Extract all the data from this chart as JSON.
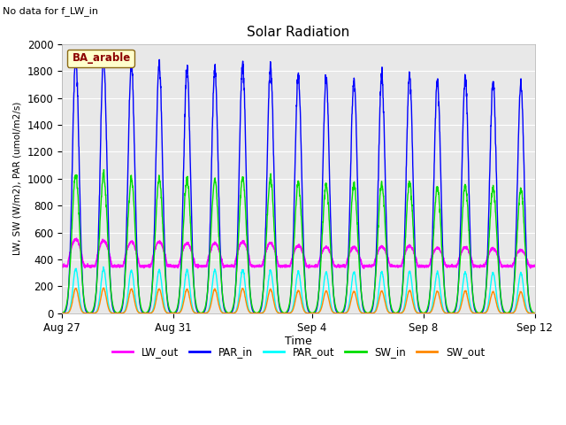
{
  "title": "Solar Radiation",
  "subtitle": "No data for f_LW_in",
  "xlabel": "Time",
  "ylabel": "LW, SW (W/m2), PAR (umol/m2/s)",
  "legend_label": "BA_arable",
  "ylim": [
    0,
    2000
  ],
  "series": {
    "LW_out": {
      "color": "#ff00ff",
      "lw": 1.2
    },
    "PAR_in": {
      "color": "#0000ff",
      "lw": 1.0
    },
    "PAR_out": {
      "color": "#00ffff",
      "lw": 1.0
    },
    "SW_in": {
      "color": "#00dd00",
      "lw": 1.0
    },
    "SW_out": {
      "color": "#ff8800",
      "lw": 1.0
    }
  },
  "bg_color": "#e8e8e8",
  "n_days": 17,
  "day_names": [
    "Aug 27",
    "Aug 31",
    "Sep 4",
    "Sep 8",
    "Sep 12"
  ],
  "day_ticks": [
    0,
    4,
    9,
    13,
    17
  ],
  "par_in_peaks": [
    1900,
    1900,
    1860,
    1850,
    1820,
    1820,
    1860,
    1830,
    1770,
    1750,
    1740,
    1760,
    1770,
    1730,
    1750,
    1720,
    1700
  ],
  "sw_in_peaks": [
    1030,
    1030,
    1000,
    1000,
    990,
    990,
    1010,
    1000,
    960,
    950,
    950,
    960,
    970,
    940,
    950,
    930,
    920
  ],
  "sw_out_peaks": [
    185,
    185,
    180,
    182,
    178,
    178,
    183,
    178,
    168,
    165,
    163,
    167,
    168,
    162,
    165,
    160,
    158
  ],
  "par_out_peaks": [
    330,
    330,
    320,
    322,
    318,
    318,
    323,
    318,
    308,
    305,
    303,
    307,
    308,
    302,
    305,
    300,
    298
  ],
  "lw_out_night": 350,
  "lw_out_day_add": 190,
  "lw_out_peaks": [
    550,
    540,
    530,
    530,
    520,
    520,
    530,
    520,
    500,
    490,
    490,
    495,
    500,
    485,
    490,
    480,
    470
  ]
}
